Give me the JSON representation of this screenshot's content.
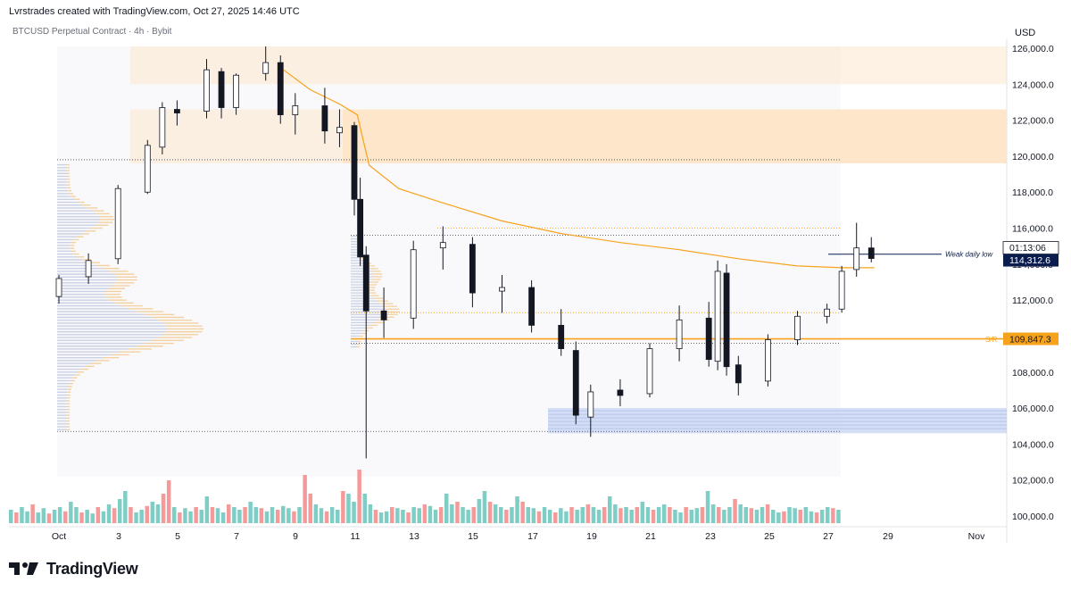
{
  "header": {
    "created_by": "Lvrstrades created with TradingView.com, Oct 27, 2025 14:46 UTC"
  },
  "chart_info": {
    "symbol_line": "BTCUSD Perpetual Contract · 4h · Bybit",
    "currency": "USD"
  },
  "brand": {
    "name": "TradingView"
  },
  "colors": {
    "up": "#26a69a",
    "down": "#ef5350",
    "candle_body_up": "#ffffff",
    "candle_body_down": "#131722",
    "orange": "#f7a21b",
    "supply_zone": "#fde3c4",
    "demand_zone": "#c9d6f2",
    "navy": "#0b1d4f"
  },
  "chart_data": {
    "type": "candlestick",
    "timeframe": "4h",
    "x_axis_ticks": [
      "Oct",
      "3",
      "5",
      "7",
      "9",
      "11",
      "13",
      "15",
      "17",
      "19",
      "21",
      "23",
      "25",
      "27",
      "29",
      "Nov"
    ],
    "y_axis_ticks": [
      "126,000.0",
      "124,000.0",
      "122,000.0",
      "120,000.0",
      "118,000.0",
      "116,000.0",
      "114,000.0",
      "112,000.0",
      "110,000.0",
      "108,000.0",
      "106,000.0",
      "104,000.0",
      "102,000.0",
      "100,000.0"
    ],
    "ylim": [
      99600,
      126400
    ],
    "x_range_days": [
      0.0,
      31.0
    ],
    "candles_ohlc": [
      [
        0.0,
        112200,
        113400,
        111800,
        113200
      ],
      [
        1.0,
        113300,
        114600,
        112900,
        114200
      ],
      [
        2.0,
        114300,
        118400,
        114000,
        118200
      ],
      [
        3.0,
        118000,
        120900,
        117900,
        120600
      ],
      [
        3.5,
        120500,
        123000,
        120100,
        122700
      ],
      [
        4.0,
        122600,
        123100,
        121700,
        122400
      ],
      [
        5.0,
        122500,
        125400,
        122100,
        124800
      ],
      [
        5.5,
        124700,
        124900,
        122100,
        122700
      ],
      [
        6.0,
        122700,
        124600,
        122300,
        124500
      ],
      [
        7.0,
        124600,
        126100,
        124200,
        125200
      ],
      [
        7.5,
        125200,
        125600,
        121800,
        122300
      ],
      [
        8.0,
        122300,
        123500,
        121200,
        122800
      ],
      [
        9.0,
        122800,
        123800,
        120700,
        121400
      ],
      [
        9.5,
        121300,
        122600,
        120500,
        121600
      ],
      [
        10.0,
        121700,
        121900,
        116700,
        117600
      ],
      [
        10.2,
        117600,
        118800,
        113900,
        114400
      ],
      [
        10.4,
        114500,
        115000,
        103200,
        111400
      ],
      [
        11.0,
        111400,
        112700,
        109900,
        110900
      ],
      [
        12.0,
        111000,
        115300,
        110400,
        114800
      ],
      [
        13.0,
        114900,
        116100,
        113700,
        115200
      ],
      [
        14.0,
        115100,
        115500,
        111600,
        112400
      ],
      [
        15.0,
        112500,
        113400,
        111300,
        112700
      ],
      [
        16.0,
        112700,
        113100,
        110200,
        110600
      ],
      [
        17.0,
        110600,
        111500,
        108900,
        109300
      ],
      [
        17.5,
        109200,
        109700,
        105100,
        105600
      ],
      [
        18.0,
        105500,
        107300,
        104400,
        106900
      ],
      [
        19.0,
        107000,
        107600,
        106100,
        106700
      ],
      [
        20.0,
        106800,
        109600,
        106600,
        109300
      ],
      [
        21.0,
        109300,
        111700,
        108600,
        110900
      ],
      [
        22.0,
        111000,
        111900,
        108300,
        108700
      ],
      [
        22.3,
        108600,
        114200,
        108100,
        113600
      ],
      [
        22.6,
        113500,
        114000,
        107800,
        108300
      ],
      [
        23.0,
        108400,
        108900,
        106700,
        107400
      ],
      [
        24.0,
        107500,
        110100,
        107200,
        109800
      ],
      [
        25.0,
        109800,
        111400,
        109500,
        111100
      ],
      [
        26.0,
        111100,
        111800,
        110700,
        111500
      ],
      [
        26.5,
        111500,
        113900,
        111300,
        113600
      ],
      [
        27.0,
        113700,
        116300,
        113300,
        114900
      ],
      [
        27.5,
        114900,
        115500,
        114100,
        114312.6
      ]
    ],
    "volume_relative": [
      0.25,
      0.2,
      0.3,
      0.22,
      0.35,
      0.2,
      0.28,
      0.18,
      0.25,
      0.3,
      0.22,
      0.4,
      0.3,
      0.2,
      0.25,
      0.18,
      0.3,
      0.22,
      0.35,
      0.28,
      0.45,
      0.6,
      0.3,
      0.2,
      0.25,
      0.32,
      0.4,
      0.35,
      0.55,
      0.8,
      0.3,
      0.2,
      0.28,
      0.22,
      0.3,
      0.25,
      0.5,
      0.3,
      0.28,
      0.2,
      0.35,
      0.3,
      0.25,
      0.3,
      0.4,
      0.3,
      0.28,
      0.22,
      0.3,
      0.25,
      0.32,
      0.28,
      0.22,
      0.3,
      0.9,
      0.55,
      0.35,
      0.28,
      0.22,
      0.3,
      0.25,
      0.6,
      0.55,
      0.4,
      1.0,
      0.55,
      0.35,
      0.25,
      0.2,
      0.22,
      0.3,
      0.28,
      0.25,
      0.2,
      0.3,
      0.28,
      0.35,
      0.32,
      0.25,
      0.3,
      0.55,
      0.35,
      0.4,
      0.3,
      0.25,
      0.3,
      0.45,
      0.6,
      0.4,
      0.35,
      0.3,
      0.25,
      0.3,
      0.5,
      0.4,
      0.3,
      0.28,
      0.22,
      0.3,
      0.25,
      0.2,
      0.28,
      0.22,
      0.3,
      0.25,
      0.3,
      0.35,
      0.3,
      0.25,
      0.3,
      0.5,
      0.35,
      0.28,
      0.3,
      0.25,
      0.3,
      0.4,
      0.3,
      0.25,
      0.3,
      0.35,
      0.3,
      0.25,
      0.2,
      0.3,
      0.25,
      0.28,
      0.3,
      0.6,
      0.35,
      0.3,
      0.25,
      0.3,
      0.45,
      0.35,
      0.3,
      0.28,
      0.25,
      0.3,
      0.35,
      0.25,
      0.2,
      0.22,
      0.3,
      0.28,
      0.25,
      0.3,
      0.22,
      0.2,
      0.25,
      0.3,
      0.28,
      0.25
    ],
    "ema_points": [
      [
        7.6,
        124800
      ],
      [
        8.5,
        123700
      ],
      [
        9.5,
        122900
      ],
      [
        10.1,
        122300
      ],
      [
        10.5,
        119500
      ],
      [
        11.5,
        118200
      ],
      [
        13.0,
        117400
      ],
      [
        15.0,
        116400
      ],
      [
        17.0,
        115700
      ],
      [
        19.0,
        115200
      ],
      [
        21.0,
        114800
      ],
      [
        23.0,
        114300
      ],
      [
        25.0,
        113900
      ],
      [
        26.5,
        113800
      ],
      [
        27.6,
        113800
      ]
    ],
    "levels": {
      "sr_label": "S/R",
      "sr_price": "109,847.3",
      "sr_value": 109847.3,
      "weak_low_label": "Weak daily low",
      "current_price": "114,312.6",
      "current_value": 114312.6,
      "countdown": "01:13:06"
    },
    "zones": {
      "supply_upper": [
        124000,
        126100
      ],
      "supply_lower": [
        119600,
        122600
      ],
      "demand": [
        104600,
        106000
      ]
    }
  }
}
